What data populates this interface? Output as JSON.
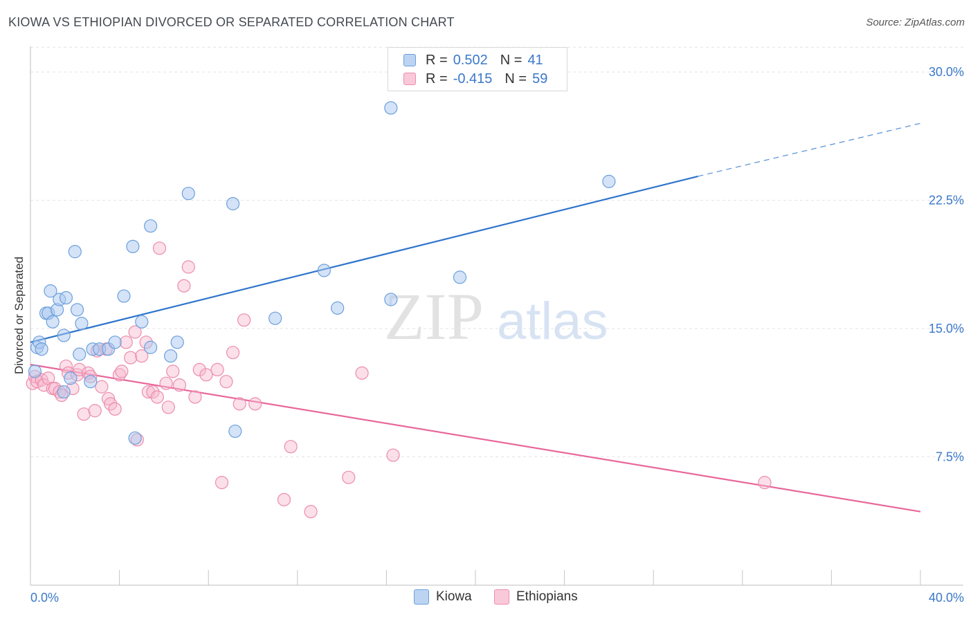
{
  "header": {
    "title": "KIOWA VS ETHIOPIAN DIVORCED OR SEPARATED CORRELATION CHART",
    "source": "Source: ZipAtlas.com"
  },
  "watermark": {
    "zip": "ZIP",
    "atlas": "atlas"
  },
  "legend": {
    "rows": [
      {
        "r_label": "R =",
        "r_value": "0.502",
        "n_label": "N =",
        "n_value": "41"
      },
      {
        "r_label": "R =",
        "r_value": "-0.415",
        "n_label": "N =",
        "n_value": "59"
      }
    ]
  },
  "bottom_legend": {
    "kiowa": "Kiowa",
    "ethiopians": "Ethiopians"
  },
  "colors": {
    "kiowa_fill": "#a9c8ef",
    "kiowa_stroke": "#6c9fdc",
    "kiowa_line": "#2e74cc",
    "eth_fill": "#f6b9ce",
    "eth_stroke": "#ec8cab",
    "eth_line": "#e8679a",
    "axis_label": "#3a78c9"
  },
  "chart_data": {
    "type": "scatter",
    "title": "KIOWA VS ETHIOPIAN DIVORCED OR SEPARATED CORRELATION CHART",
    "ylabel": "Divorced or Separated",
    "xlabel": "",
    "xlim": [
      0,
      40
    ],
    "ylim": [
      0,
      31.5
    ],
    "x_tick_labels": [
      {
        "value": 0,
        "label": "0.0%"
      },
      {
        "value": 40,
        "label": "40.0%"
      }
    ],
    "y_tick_labels": [
      {
        "value": 7.5,
        "label": "7.5%"
      },
      {
        "value": 15,
        "label": "15.0%"
      },
      {
        "value": 22.5,
        "label": "22.5%"
      },
      {
        "value": 30,
        "label": "30.0%"
      }
    ],
    "grid": "horizontal dashed",
    "legend_position": "top-center",
    "series": [
      {
        "name": "Kiowa",
        "trend": {
          "x0": 0,
          "y0": 14.2,
          "x1": 30,
          "y1": 23.9,
          "dashed_to_x": 40,
          "dashed_to_y": 27.0
        },
        "points": [
          [
            0.2,
            12.5
          ],
          [
            0.3,
            13.9
          ],
          [
            0.4,
            14.2
          ],
          [
            0.5,
            13.8
          ],
          [
            0.7,
            15.9
          ],
          [
            0.8,
            15.9
          ],
          [
            0.9,
            17.2
          ],
          [
            1.0,
            15.4
          ],
          [
            1.2,
            16.1
          ],
          [
            1.3,
            16.7
          ],
          [
            1.5,
            14.6
          ],
          [
            1.6,
            16.8
          ],
          [
            1.5,
            11.3
          ],
          [
            1.8,
            12.1
          ],
          [
            2.0,
            19.5
          ],
          [
            2.1,
            16.1
          ],
          [
            2.2,
            13.5
          ],
          [
            2.3,
            15.3
          ],
          [
            2.7,
            11.9
          ],
          [
            2.8,
            13.8
          ],
          [
            3.1,
            13.8
          ],
          [
            3.5,
            13.8
          ],
          [
            3.8,
            14.2
          ],
          [
            4.2,
            16.9
          ],
          [
            4.6,
            19.8
          ],
          [
            4.7,
            8.6
          ],
          [
            5.0,
            15.4
          ],
          [
            5.4,
            13.9
          ],
          [
            5.4,
            21.0
          ],
          [
            6.3,
            13.4
          ],
          [
            6.6,
            14.2
          ],
          [
            7.1,
            22.9
          ],
          [
            9.1,
            22.3
          ],
          [
            9.2,
            9.0
          ],
          [
            11.0,
            15.6
          ],
          [
            13.2,
            18.4
          ],
          [
            13.8,
            16.2
          ],
          [
            16.2,
            27.9
          ],
          [
            16.2,
            16.7
          ],
          [
            19.3,
            18.0
          ],
          [
            26.0,
            23.6
          ]
        ]
      },
      {
        "name": "Ethiopians",
        "trend": {
          "x0": 0,
          "y0": 12.9,
          "x1": 40,
          "y1": 4.3
        },
        "points": [
          [
            0.1,
            11.8
          ],
          [
            0.2,
            12.2
          ],
          [
            0.3,
            11.9
          ],
          [
            0.5,
            12.0
          ],
          [
            0.6,
            11.7
          ],
          [
            0.8,
            12.1
          ],
          [
            1.0,
            11.5
          ],
          [
            1.1,
            11.5
          ],
          [
            1.3,
            11.3
          ],
          [
            1.4,
            11.1
          ],
          [
            1.6,
            12.8
          ],
          [
            1.7,
            12.4
          ],
          [
            1.9,
            11.5
          ],
          [
            2.1,
            12.3
          ],
          [
            2.2,
            12.6
          ],
          [
            2.4,
            10.0
          ],
          [
            2.6,
            12.4
          ],
          [
            2.7,
            12.2
          ],
          [
            2.9,
            10.2
          ],
          [
            3.0,
            13.7
          ],
          [
            3.2,
            11.6
          ],
          [
            3.4,
            13.8
          ],
          [
            3.5,
            10.9
          ],
          [
            3.6,
            10.6
          ],
          [
            3.8,
            10.3
          ],
          [
            4.0,
            12.3
          ],
          [
            4.1,
            12.5
          ],
          [
            4.3,
            14.2
          ],
          [
            4.5,
            13.3
          ],
          [
            4.7,
            14.8
          ],
          [
            4.8,
            8.5
          ],
          [
            5.0,
            13.4
          ],
          [
            5.2,
            14.2
          ],
          [
            5.3,
            11.3
          ],
          [
            5.5,
            11.3
          ],
          [
            5.7,
            11.0
          ],
          [
            5.8,
            19.7
          ],
          [
            6.1,
            11.8
          ],
          [
            6.2,
            10.4
          ],
          [
            6.4,
            12.5
          ],
          [
            6.7,
            11.7
          ],
          [
            6.9,
            17.5
          ],
          [
            7.1,
            18.6
          ],
          [
            7.4,
            11.0
          ],
          [
            7.6,
            12.6
          ],
          [
            7.9,
            12.3
          ],
          [
            8.4,
            12.6
          ],
          [
            8.6,
            6.0
          ],
          [
            8.8,
            11.9
          ],
          [
            9.1,
            13.6
          ],
          [
            9.4,
            10.6
          ],
          [
            9.6,
            15.5
          ],
          [
            10.1,
            10.6
          ],
          [
            11.4,
            5.0
          ],
          [
            11.7,
            8.1
          ],
          [
            12.6,
            4.3
          ],
          [
            14.3,
            6.3
          ],
          [
            14.9,
            12.4
          ],
          [
            16.3,
            7.6
          ],
          [
            33.0,
            6.0
          ]
        ]
      }
    ]
  }
}
